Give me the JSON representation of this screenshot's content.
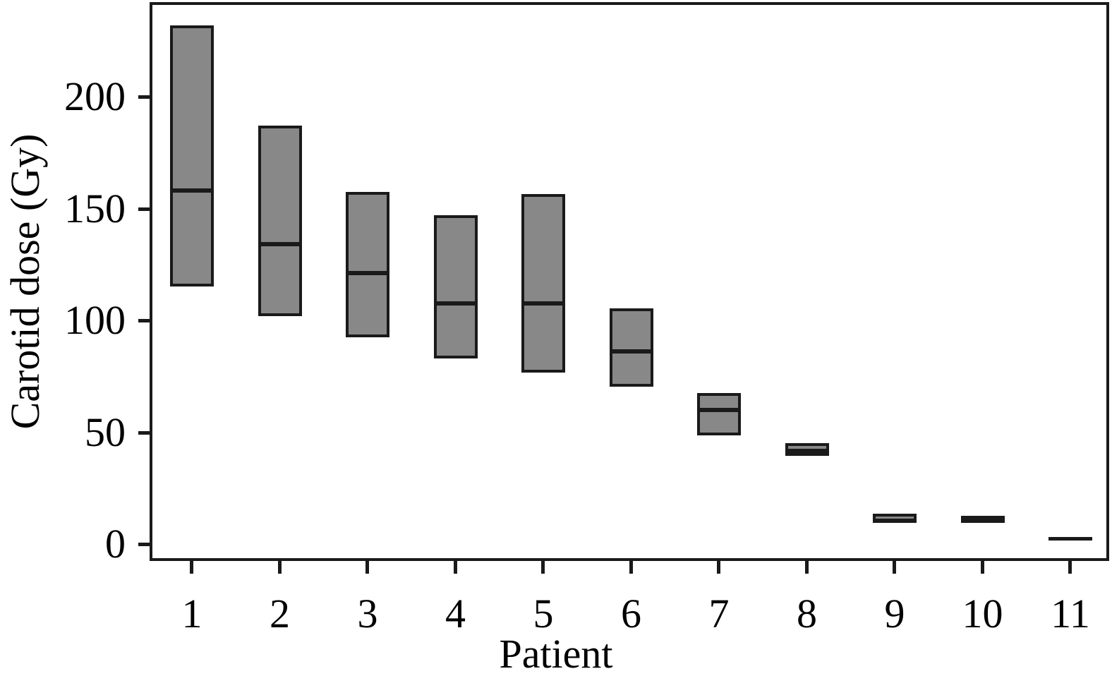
{
  "chart_data": {
    "type": "box",
    "title": "",
    "xlabel": "Patient",
    "ylabel": "Carotid dose (Gy)",
    "categories": [
      "1",
      "2",
      "3",
      "4",
      "5",
      "6",
      "7",
      "8",
      "9",
      "10",
      "11"
    ],
    "yticks": [
      0,
      50,
      100,
      150,
      200
    ],
    "ylim": [
      -8,
      243
    ],
    "grid": false,
    "legend": "none",
    "box_fill": "#888888",
    "box_edge": "#1a1a1a",
    "frame_color": "#1a1a1a",
    "series": [
      {
        "patient": "1",
        "low": 115,
        "median": 158,
        "high": 232
      },
      {
        "patient": "2",
        "low": 102,
        "median": 134,
        "high": 187
      },
      {
        "patient": "3",
        "low": 92.5,
        "median": 121,
        "high": 157.5
      },
      {
        "patient": "4",
        "low": 83,
        "median": 107.5,
        "high": 147
      },
      {
        "patient": "5",
        "low": 76.5,
        "median": 107.5,
        "high": 156.5
      },
      {
        "patient": "6",
        "low": 70.5,
        "median": 86,
        "high": 105.5
      },
      {
        "patient": "7",
        "low": 48.5,
        "median": 60,
        "high": 67.5
      },
      {
        "patient": "8",
        "low": 39.5,
        "median": 41.5,
        "high": 45
      },
      {
        "patient": "9",
        "low": 10,
        "median": 10.5,
        "high": 13.5
      },
      {
        "patient": "10",
        "low": 9.5,
        "median": 11,
        "high": 12.5
      },
      {
        "patient": "11",
        "low": 2,
        "median": 2.5,
        "high": 3
      }
    ]
  }
}
